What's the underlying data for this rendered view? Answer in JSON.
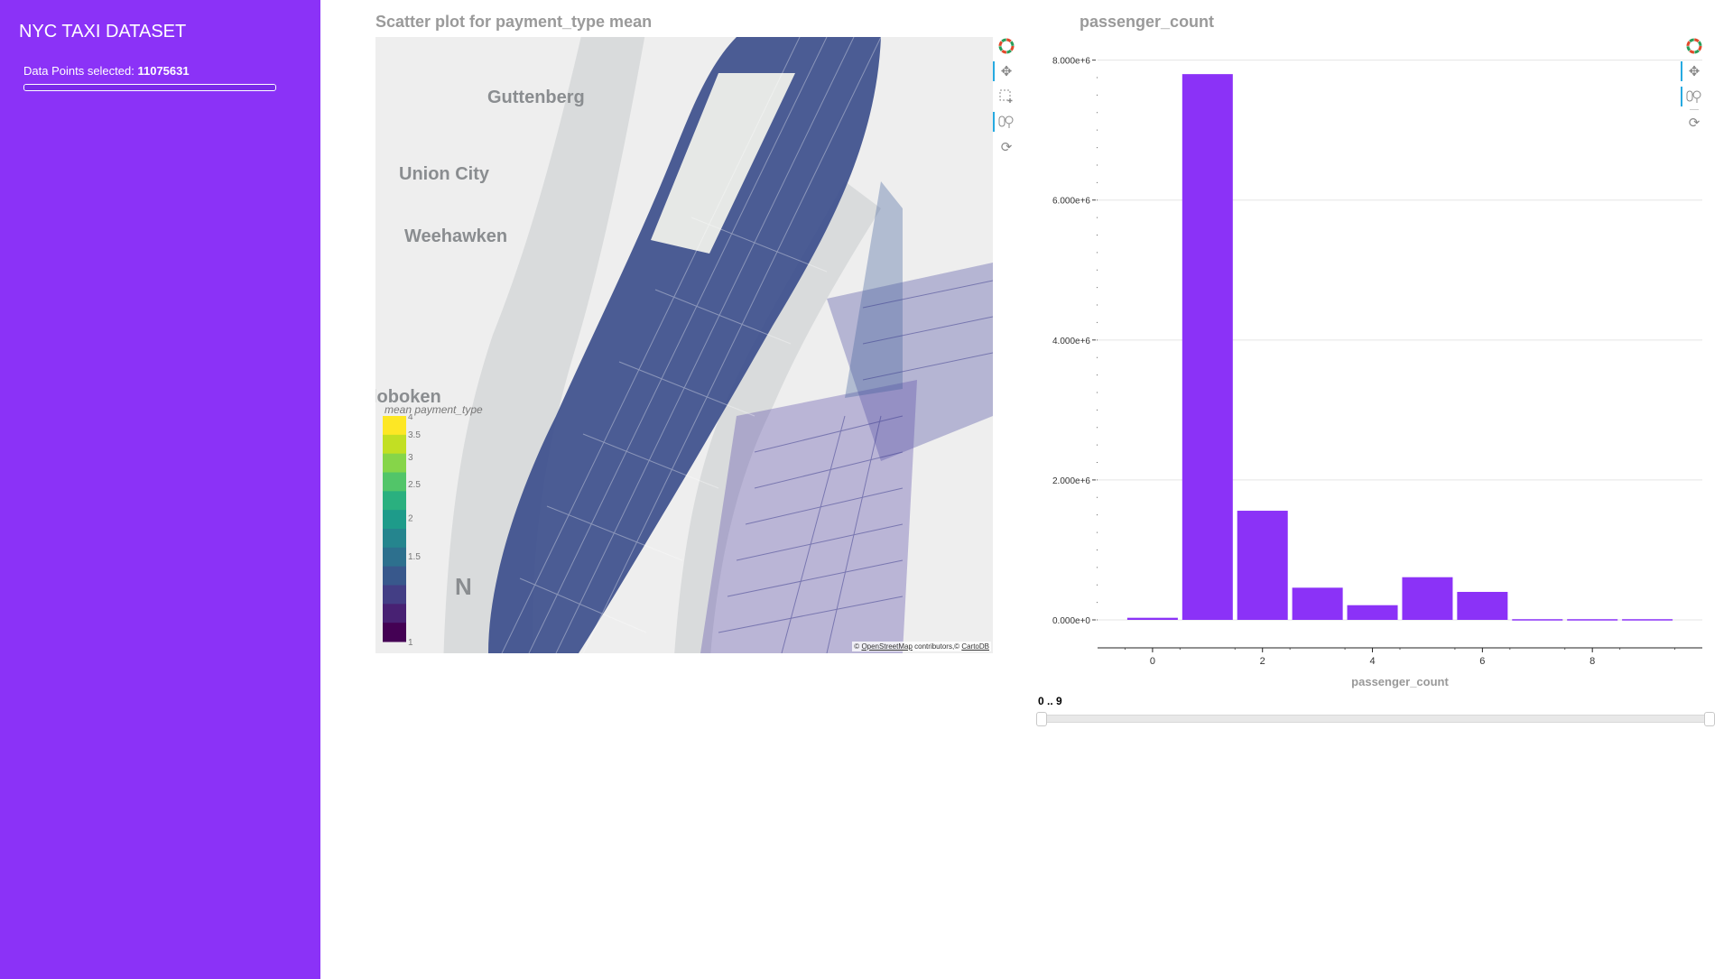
{
  "sidebar": {
    "title": "NYC TAXI DATASET",
    "data_points_label": "Data Points selected:",
    "data_points_value": "11075631",
    "progress_fraction": 1.0,
    "background_color": "#8b32f7"
  },
  "map_panel": {
    "title": "Scatter plot for payment_type mean",
    "place_labels": [
      "Guttenberg",
      "Union City",
      "Weehawken",
      "loboken",
      "N"
    ],
    "attribution": {
      "prefix": "©",
      "link1": "OpenStreetMap",
      "middle": "contributors,©",
      "link2": "CartoDB"
    },
    "colorbar": {
      "title": "mean payment_type",
      "ticks": [
        "4",
        "3.5",
        "3",
        "2.5",
        "2",
        "1.5",
        "1"
      ],
      "colors": [
        "#fde725",
        "#c2df23",
        "#86d549",
        "#52c569",
        "#2ab07f",
        "#1e9b8a",
        "#25858e",
        "#2d708e",
        "#38588c",
        "#433e85",
        "#482173",
        "#440154"
      ]
    },
    "toolbar": [
      "bokeh-logo-icon",
      "pan-icon",
      "box-zoom-icon",
      "wheel-zoom-icon",
      "reset-icon"
    ]
  },
  "hist_panel": {
    "title": "passenger_count",
    "toolbar": [
      "bokeh-logo-icon",
      "pan-icon",
      "wheel-zoom-icon",
      "reset-icon"
    ]
  },
  "chart_data": {
    "type": "bar",
    "title": "passenger_count",
    "xlabel": "passenger_count",
    "ylabel": "",
    "categories": [
      0,
      1,
      2,
      3,
      4,
      5,
      6,
      7,
      8,
      9
    ],
    "values": [
      30000,
      7800000,
      1560000,
      460000,
      210000,
      610000,
      400000,
      10000,
      10000,
      10000
    ],
    "x_ticks": [
      0,
      2,
      4,
      6,
      8
    ],
    "y_ticks": [
      0,
      2000000,
      4000000,
      6000000,
      8000000
    ],
    "y_tick_labels": [
      "0.000e+0",
      "2.000e+6",
      "4.000e+6",
      "6.000e+6",
      "8.000e+6"
    ],
    "xlim": [
      -1,
      10
    ],
    "ylim": [
      0,
      8150000
    ],
    "grid": true,
    "bar_color": "#8b32f7"
  },
  "range_slider": {
    "label": "0 .. 9",
    "min": 0,
    "max": 9,
    "start": 0,
    "end": 9
  }
}
